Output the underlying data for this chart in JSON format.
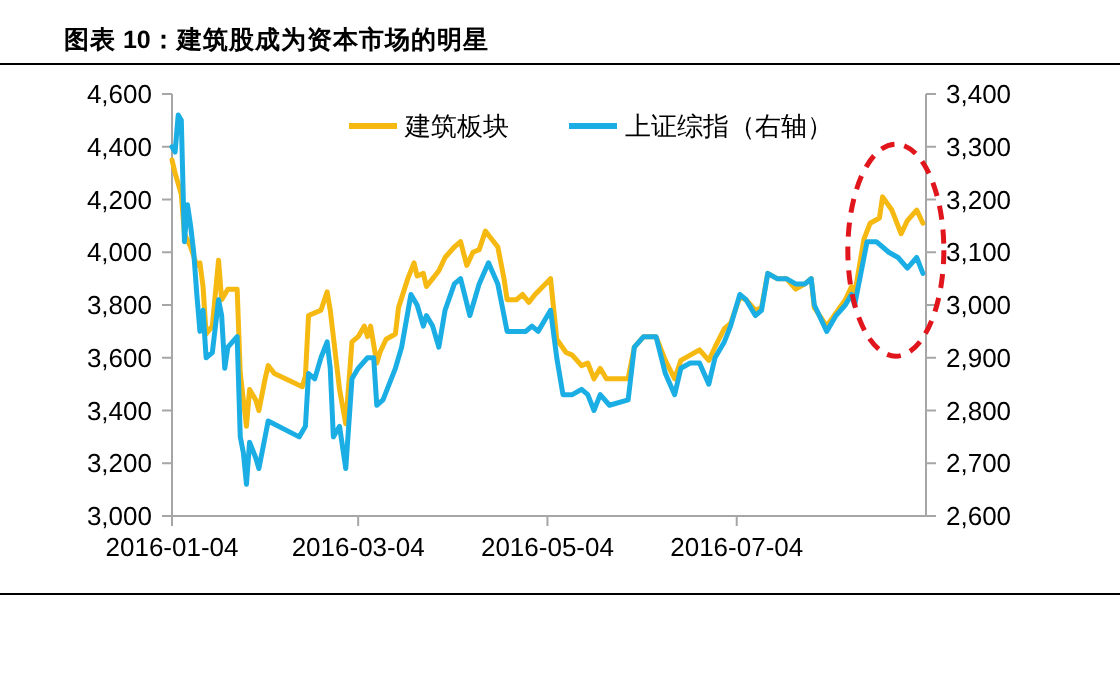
{
  "chart_data": {
    "type": "line",
    "title": "图表 10：建筑股成为资本市场的明星",
    "xlim": [
      "2016-01-04",
      "2016-09-03"
    ],
    "xticks": [
      {
        "value": "2016-01-04",
        "label": "2016-01-04"
      },
      {
        "value": "2016-03-04",
        "label": "2016-03-04"
      },
      {
        "value": "2016-05-04",
        "label": "2016-05-04"
      },
      {
        "value": "2016-07-04",
        "label": "2016-07-04"
      }
    ],
    "ylim": [
      3000,
      4600
    ],
    "yticks": [
      {
        "value": 3000,
        "label": "3,000"
      },
      {
        "value": 3200,
        "label": "3,200"
      },
      {
        "value": 3400,
        "label": "3,400"
      },
      {
        "value": 3600,
        "label": "3,600"
      },
      {
        "value": 3800,
        "label": "3,800"
      },
      {
        "value": 4000,
        "label": "4,000"
      },
      {
        "value": 4200,
        "label": "4,200"
      },
      {
        "value": 4400,
        "label": "4,400"
      },
      {
        "value": 4600,
        "label": "4,600"
      }
    ],
    "y2lim": [
      2600,
      3400
    ],
    "y2ticks": [
      {
        "value": 2600,
        "label": "2,600"
      },
      {
        "value": 2700,
        "label": "2,700"
      },
      {
        "value": 2800,
        "label": "2,800"
      },
      {
        "value": 2900,
        "label": "2,900"
      },
      {
        "value": 3000,
        "label": "3,000"
      },
      {
        "value": 3100,
        "label": "3,100"
      },
      {
        "value": 3200,
        "label": "3,200"
      },
      {
        "value": 3300,
        "label": "3,300"
      },
      {
        "value": 3400,
        "label": "3,400"
      }
    ],
    "grid": false,
    "legend": "top",
    "marker": "none",
    "line_style": "solid",
    "series": [
      {
        "name": "建筑板块",
        "color": "#f5b911",
        "x": [
          "2016-01-04",
          "2016-01-05",
          "2016-01-07",
          "2016-01-08",
          "2016-01-10",
          "2016-01-12",
          "2016-01-13",
          "2016-01-14",
          "2016-01-15",
          "2016-01-17",
          "2016-01-19",
          "2016-01-20",
          "2016-01-21",
          "2016-01-22",
          "2016-01-25",
          "2016-01-26",
          "2016-01-28",
          "2016-01-29",
          "2016-01-31",
          "2016-02-01",
          "2016-02-03",
          "2016-02-04",
          "2016-02-06",
          "2016-02-15",
          "2016-02-16",
          "2016-02-17",
          "2016-02-19",
          "2016-02-21",
          "2016-02-23",
          "2016-02-24",
          "2016-02-26",
          "2016-02-27",
          "2016-02-29",
          "2016-03-02",
          "2016-03-04",
          "2016-03-06",
          "2016-03-07",
          "2016-03-08",
          "2016-03-10",
          "2016-03-11",
          "2016-03-13",
          "2016-03-16",
          "2016-03-17",
          "2016-03-20",
          "2016-03-22",
          "2016-03-23",
          "2016-03-25",
          "2016-03-26",
          "2016-03-28",
          "2016-03-30",
          "2016-04-01",
          "2016-04-04",
          "2016-04-06",
          "2016-04-08",
          "2016-04-10",
          "2016-04-12",
          "2016-04-14",
          "2016-04-16",
          "2016-04-18",
          "2016-04-20",
          "2016-04-21",
          "2016-04-24",
          "2016-04-26",
          "2016-04-28",
          "2016-04-30",
          "2016-05-05",
          "2016-05-07",
          "2016-05-10",
          "2016-05-12",
          "2016-05-15",
          "2016-05-17",
          "2016-05-19",
          "2016-05-21",
          "2016-05-23",
          "2016-05-25",
          "2016-05-30",
          "2016-06-01",
          "2016-06-04",
          "2016-06-08",
          "2016-06-11",
          "2016-06-14",
          "2016-06-16",
          "2016-06-19",
          "2016-06-22",
          "2016-06-25",
          "2016-06-27",
          "2016-06-30",
          "2016-07-02",
          "2016-07-05",
          "2016-07-07",
          "2016-07-10",
          "2016-07-12",
          "2016-07-14",
          "2016-07-17",
          "2016-07-20",
          "2016-07-23",
          "2016-07-26",
          "2016-07-28",
          "2016-07-29",
          "2016-08-02",
          "2016-08-05",
          "2016-08-08",
          "2016-08-10",
          "2016-08-11",
          "2016-08-14",
          "2016-08-16",
          "2016-08-19",
          "2016-08-20",
          "2016-08-23",
          "2016-08-26",
          "2016-08-28",
          "2016-08-31",
          "2016-09-02"
        ],
        "values": [
          4350,
          4300,
          4220,
          4070,
          4020,
          3950,
          3960,
          3870,
          3690,
          3720,
          3970,
          3820,
          3840,
          3860,
          3860,
          3540,
          3340,
          3480,
          3440,
          3400,
          3520,
          3570,
          3540,
          3490,
          3530,
          3760,
          3770,
          3780,
          3850,
          3780,
          3580,
          3480,
          3350,
          3660,
          3680,
          3720,
          3680,
          3720,
          3580,
          3620,
          3670,
          3690,
          3790,
          3900,
          3960,
          3910,
          3920,
          3870,
          3900,
          3930,
          3980,
          4020,
          4040,
          3950,
          4000,
          4010,
          4080,
          4050,
          4020,
          3900,
          3820,
          3820,
          3840,
          3810,
          3840,
          3900,
          3670,
          3620,
          3610,
          3570,
          3580,
          3520,
          3560,
          3520,
          3520,
          3520,
          3640,
          3680,
          3680,
          3590,
          3520,
          3590,
          3610,
          3630,
          3590,
          3640,
          3710,
          3730,
          3830,
          3820,
          3780,
          3790,
          3920,
          3900,
          3900,
          3860,
          3880,
          3900,
          3790,
          3720,
          3770,
          3820,
          3870,
          3840,
          4050,
          4110,
          4130,
          4210,
          4160,
          4070,
          4120,
          4160,
          4110
        ]
      },
      {
        "name": "上证综指（右轴）",
        "color": "#1aaee5",
        "axis": "y2",
        "x": [
          "2016-01-04",
          "2016-01-05",
          "2016-01-06",
          "2016-01-07",
          "2016-01-08",
          "2016-01-09",
          "2016-01-10",
          "2016-01-11",
          "2016-01-12",
          "2016-01-13",
          "2016-01-14",
          "2016-01-15",
          "2016-01-17",
          "2016-01-19",
          "2016-01-20",
          "2016-01-21",
          "2016-01-22",
          "2016-01-25",
          "2016-01-26",
          "2016-01-27",
          "2016-01-28",
          "2016-01-29",
          "2016-01-31",
          "2016-02-01",
          "2016-02-03",
          "2016-02-04",
          "2016-02-14",
          "2016-02-16",
          "2016-02-17",
          "2016-02-19",
          "2016-02-21",
          "2016-02-23",
          "2016-02-24",
          "2016-02-25",
          "2016-02-27",
          "2016-02-29",
          "2016-03-02",
          "2016-03-04",
          "2016-03-07",
          "2016-03-09",
          "2016-03-10",
          "2016-03-12",
          "2016-03-14",
          "2016-03-16",
          "2016-03-18",
          "2016-03-21",
          "2016-03-23",
          "2016-03-25",
          "2016-03-26",
          "2016-03-28",
          "2016-03-30",
          "2016-04-01",
          "2016-04-04",
          "2016-04-06",
          "2016-04-09",
          "2016-04-12",
          "2016-04-15",
          "2016-04-18",
          "2016-04-21",
          "2016-04-25",
          "2016-04-27",
          "2016-04-29",
          "2016-05-01",
          "2016-05-05",
          "2016-05-07",
          "2016-05-09",
          "2016-05-12",
          "2016-05-15",
          "2016-05-17",
          "2016-05-19",
          "2016-05-21",
          "2016-05-24",
          "2016-05-30",
          "2016-06-01",
          "2016-06-04",
          "2016-06-08",
          "2016-06-11",
          "2016-06-14",
          "2016-06-16",
          "2016-06-19",
          "2016-06-22",
          "2016-06-25",
          "2016-06-27",
          "2016-06-30",
          "2016-07-02",
          "2016-07-05",
          "2016-07-07",
          "2016-07-10",
          "2016-07-12",
          "2016-07-14",
          "2016-07-17",
          "2016-07-20",
          "2016-07-23",
          "2016-07-26",
          "2016-07-28",
          "2016-07-29",
          "2016-08-02",
          "2016-08-05",
          "2016-08-08",
          "2016-08-10",
          "2016-08-11",
          "2016-08-15",
          "2016-08-18",
          "2016-08-22",
          "2016-08-25",
          "2016-08-28",
          "2016-08-31",
          "2016-09-02"
        ],
        "values": [
          3300,
          3290,
          3360,
          3350,
          3120,
          3190,
          3150,
          3100,
          3020,
          2950,
          2990,
          2900,
          2910,
          3010,
          2980,
          2880,
          2920,
          2940,
          2750,
          2720,
          2660,
          2740,
          2710,
          2690,
          2750,
          2780,
          2750,
          2770,
          2870,
          2860,
          2900,
          2930,
          2880,
          2750,
          2770,
          2690,
          2860,
          2880,
          2900,
          2900,
          2810,
          2820,
          2850,
          2880,
          2920,
          3020,
          3000,
          2960,
          2980,
          2960,
          2920,
          2990,
          3040,
          3050,
          2980,
          3040,
          3080,
          3040,
          2950,
          2950,
          2950,
          2960,
          2950,
          2990,
          2900,
          2830,
          2830,
          2840,
          2830,
          2800,
          2830,
          2810,
          2820,
          2920,
          2940,
          2940,
          2870,
          2830,
          2880,
          2890,
          2890,
          2850,
          2900,
          2930,
          2960,
          3020,
          3010,
          2980,
          2990,
          3060,
          3050,
          3050,
          3040,
          3040,
          3050,
          3000,
          2950,
          2980,
          3000,
          3020,
          3000,
          3120,
          3120,
          3100,
          3090,
          3070,
          3090,
          3060
        ]
      }
    ]
  }
}
